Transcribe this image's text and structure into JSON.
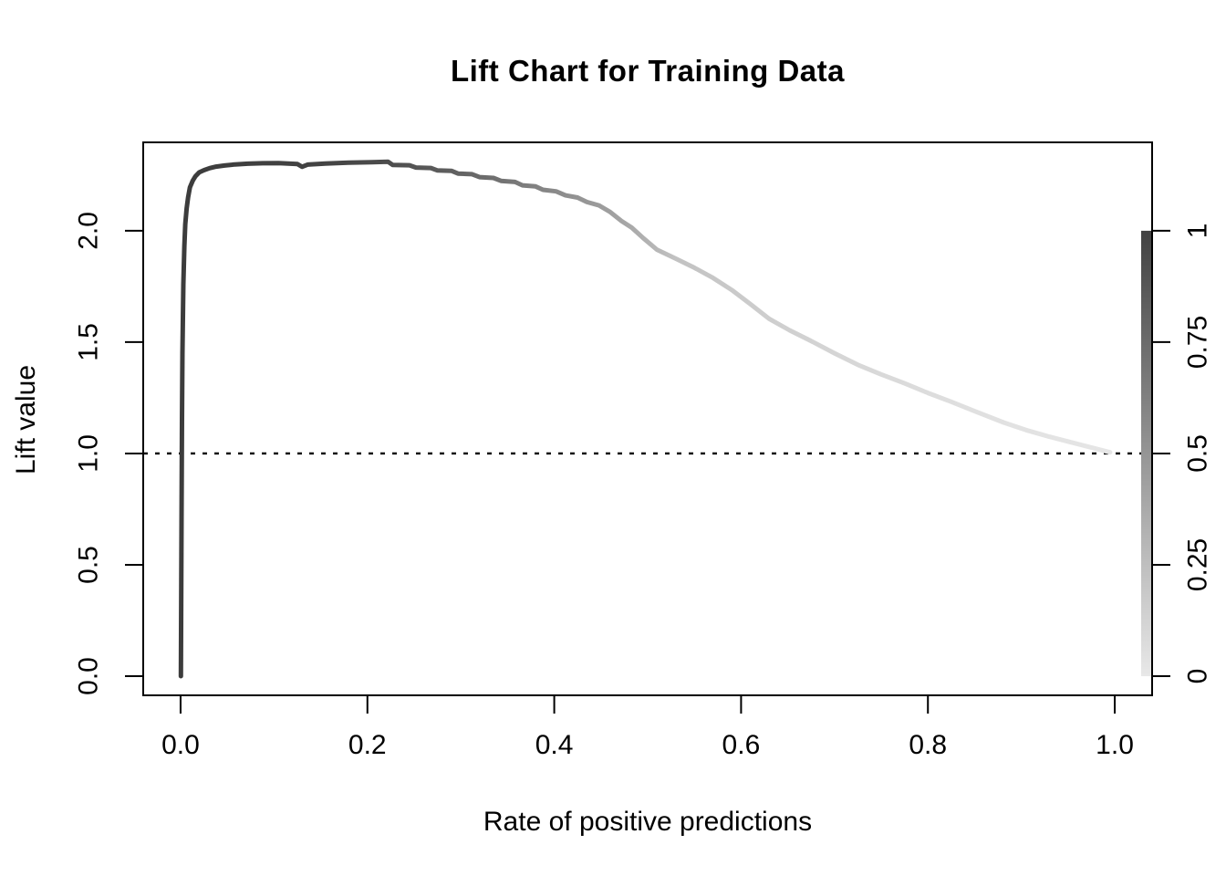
{
  "chart_data": {
    "type": "line",
    "title": "Lift Chart for Training Data",
    "xlabel": "Rate of positive predictions",
    "ylabel": "Lift value",
    "xlim": [
      -0.04,
      1.04
    ],
    "ylim": [
      -0.086,
      2.397
    ],
    "grid": false,
    "background": "#ffffff",
    "box_color": "#000000",
    "x_ticks": [
      0.0,
      0.2,
      0.4,
      0.6,
      0.8,
      1.0
    ],
    "x_tick_labels": [
      "0.0",
      "0.2",
      "0.4",
      "0.6",
      "0.8",
      "1.0"
    ],
    "y_ticks": [
      0.0,
      0.5,
      1.0,
      1.5,
      2.0
    ],
    "y_tick_labels": [
      "0.0",
      "0.5",
      "1.0",
      "1.5",
      "2.0"
    ],
    "reference_line": {
      "y": 1.0,
      "style": "dotted",
      "color": "#000000"
    },
    "colorbar": {
      "position": "right",
      "value_range": [
        0,
        1
      ],
      "span_in_y_units": [
        0.0,
        2.0
      ],
      "ticks": [
        0,
        0.25,
        0.5,
        0.75,
        1
      ],
      "tick_labels": [
        "0",
        "0.25",
        "0.5",
        "0.75",
        "1"
      ],
      "top_color": "#424242",
      "bottom_color": "#e8e8e8"
    },
    "series": [
      {
        "name": "lift-curve",
        "color_gradient_by_x": [
          [
            0.0,
            "#3c3c3c"
          ],
          [
            0.15,
            "#434343"
          ],
          [
            0.22,
            "#4c4c4c"
          ],
          [
            0.28,
            "#5c5c5c"
          ],
          [
            0.34,
            "#717171"
          ],
          [
            0.41,
            "#8e8e8e"
          ],
          [
            0.47,
            "#a3a3a3"
          ],
          [
            0.53,
            "#c2c2c2"
          ],
          [
            0.62,
            "#cdcdcd"
          ],
          [
            0.72,
            "#d7d7d7"
          ],
          [
            0.85,
            "#e0e0e0"
          ],
          [
            1.0,
            "#e6e6e6"
          ]
        ],
        "points": [
          [
            0.0003,
            0.0
          ],
          [
            0.001,
            0.7
          ],
          [
            0.0015,
            1.15
          ],
          [
            0.002,
            1.45
          ],
          [
            0.003,
            1.76
          ],
          [
            0.004,
            1.93
          ],
          [
            0.005,
            2.03
          ],
          [
            0.0065,
            2.1
          ],
          [
            0.008,
            2.15
          ],
          [
            0.01,
            2.195
          ],
          [
            0.013,
            2.225
          ],
          [
            0.016,
            2.245
          ],
          [
            0.02,
            2.262
          ],
          [
            0.025,
            2.272
          ],
          [
            0.031,
            2.281
          ],
          [
            0.038,
            2.288
          ],
          [
            0.047,
            2.293
          ],
          [
            0.058,
            2.298
          ],
          [
            0.072,
            2.301
          ],
          [
            0.088,
            2.303
          ],
          [
            0.105,
            2.304
          ],
          [
            0.125,
            2.3
          ],
          [
            0.13,
            2.287
          ],
          [
            0.136,
            2.297
          ],
          [
            0.155,
            2.302
          ],
          [
            0.18,
            2.306
          ],
          [
            0.205,
            2.308
          ],
          [
            0.222,
            2.31
          ],
          [
            0.227,
            2.296
          ],
          [
            0.245,
            2.294
          ],
          [
            0.252,
            2.284
          ],
          [
            0.268,
            2.282
          ],
          [
            0.275,
            2.271
          ],
          [
            0.29,
            2.269
          ],
          [
            0.297,
            2.257
          ],
          [
            0.312,
            2.254
          ],
          [
            0.32,
            2.241
          ],
          [
            0.335,
            2.237
          ],
          [
            0.343,
            2.224
          ],
          [
            0.358,
            2.219
          ],
          [
            0.366,
            2.204
          ],
          [
            0.38,
            2.199
          ],
          [
            0.388,
            2.184
          ],
          [
            0.402,
            2.177
          ],
          [
            0.412,
            2.159
          ],
          [
            0.425,
            2.149
          ],
          [
            0.435,
            2.129
          ],
          [
            0.448,
            2.114
          ],
          [
            0.46,
            2.084
          ],
          [
            0.472,
            2.044
          ],
          [
            0.483,
            2.014
          ],
          [
            0.495,
            1.968
          ],
          [
            0.51,
            1.915
          ],
          [
            0.53,
            1.875
          ],
          [
            0.55,
            1.834
          ],
          [
            0.57,
            1.788
          ],
          [
            0.59,
            1.734
          ],
          [
            0.61,
            1.671
          ],
          [
            0.63,
            1.605
          ],
          [
            0.652,
            1.553
          ],
          [
            0.675,
            1.505
          ],
          [
            0.7,
            1.45
          ],
          [
            0.725,
            1.398
          ],
          [
            0.75,
            1.355
          ],
          [
            0.775,
            1.315
          ],
          [
            0.8,
            1.272
          ],
          [
            0.825,
            1.232
          ],
          [
            0.85,
            1.19
          ],
          [
            0.881,
            1.139
          ],
          [
            0.905,
            1.105
          ],
          [
            0.93,
            1.075
          ],
          [
            0.955,
            1.048
          ],
          [
            0.975,
            1.027
          ],
          [
            0.995,
            1.005
          ]
        ]
      }
    ]
  }
}
